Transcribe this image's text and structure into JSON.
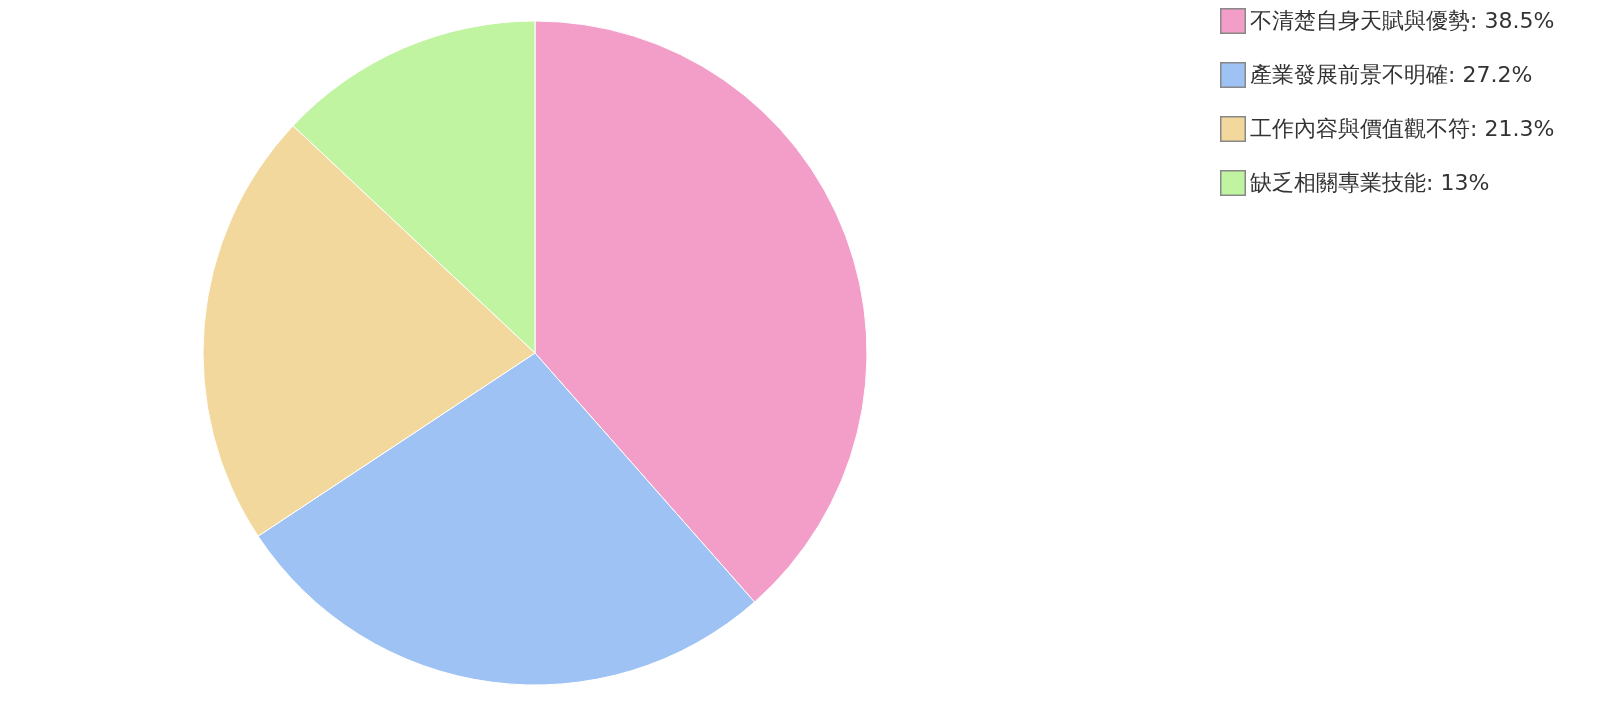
{
  "chart_data": {
    "type": "pie",
    "categories": [
      "不清楚自身天賦與優勢: 38.5%",
      "產業發展前景不明確: 27.2%",
      "工作內容與價值觀不符: 21.3%",
      "缺乏相關專業技能: 13%"
    ],
    "values": [
      38.5,
      27.2,
      21.3,
      13
    ],
    "colors": [
      "#f29ec8",
      "#9fc2f4",
      "#f3d89d",
      "#c1f4a1"
    ],
    "legend": "right"
  }
}
